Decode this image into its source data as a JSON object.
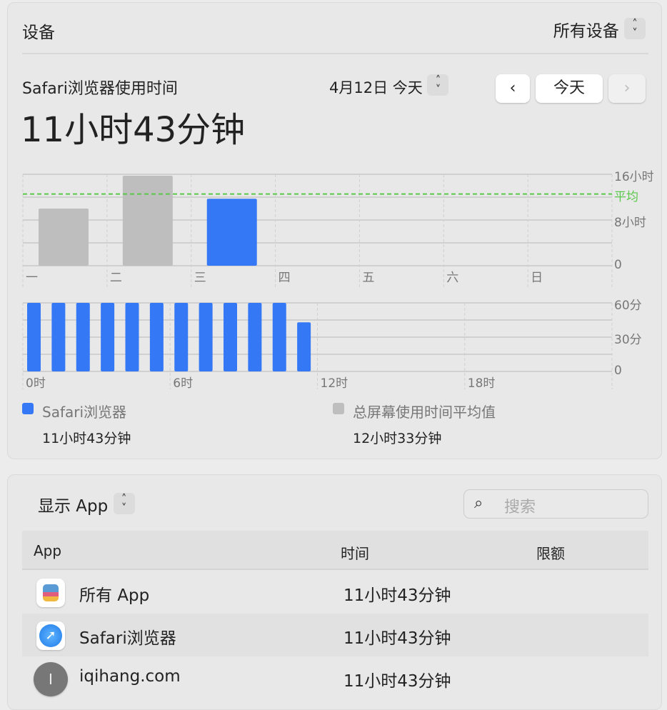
{
  "devices": {
    "label": "设备",
    "selected": "所有设备"
  },
  "usage": {
    "title": "Safari浏览器使用时间",
    "total": "11小时43分钟",
    "date": "4月12日 今天",
    "today_button": "今天"
  },
  "colors": {
    "accent": "#3478f6",
    "gray_bar": "#bebebe",
    "average": "#5ac84a"
  },
  "chart_data": [
    {
      "type": "bar",
      "categories": [
        "一",
        "二",
        "三",
        "四",
        "五",
        "六",
        "日"
      ],
      "series": [
        {
          "values": [
            10,
            15.75,
            11.72,
            null,
            null,
            null,
            null
          ]
        }
      ],
      "ylim": [
        0,
        16
      ],
      "yticks": [
        "0",
        "8小时",
        "16小时"
      ],
      "average": 12.55,
      "average_label": "平均",
      "highlight_index": 2,
      "grid": true
    },
    {
      "type": "bar",
      "categories": [
        "0时",
        "6时",
        "12时",
        "18时"
      ],
      "x": [
        0,
        1,
        2,
        3,
        4,
        5,
        6,
        7,
        8,
        9,
        10,
        11,
        12,
        13,
        14,
        15,
        16,
        17,
        18,
        19,
        20,
        21,
        22,
        23
      ],
      "series": [
        {
          "values": [
            60,
            60,
            60,
            60,
            60,
            60,
            60,
            60,
            60,
            60,
            60,
            43,
            0,
            0,
            0,
            0,
            0,
            0,
            0,
            0,
            0,
            0,
            0,
            0
          ]
        }
      ],
      "ylim": [
        0,
        60
      ],
      "yticks": [
        "0",
        "30分",
        "60分"
      ],
      "grid": true
    }
  ],
  "legend": [
    {
      "label": "Safari浏览器",
      "value": "11小时43分钟",
      "color": "#3478f6"
    },
    {
      "label": "总屏幕使用时间平均值",
      "value": "12小时33分钟",
      "color": "#bebebe"
    }
  ],
  "list": {
    "filter": "显示 App",
    "search_placeholder": "搜索",
    "columns": [
      "App",
      "时间",
      "限额"
    ],
    "rows": [
      {
        "name": "所有 App",
        "time": "11小时43分钟"
      },
      {
        "name": "Safari浏览器",
        "time": "11小时43分钟"
      },
      {
        "name": "iqihang.com",
        "time": "11小时43分钟",
        "initial": "I"
      }
    ]
  }
}
